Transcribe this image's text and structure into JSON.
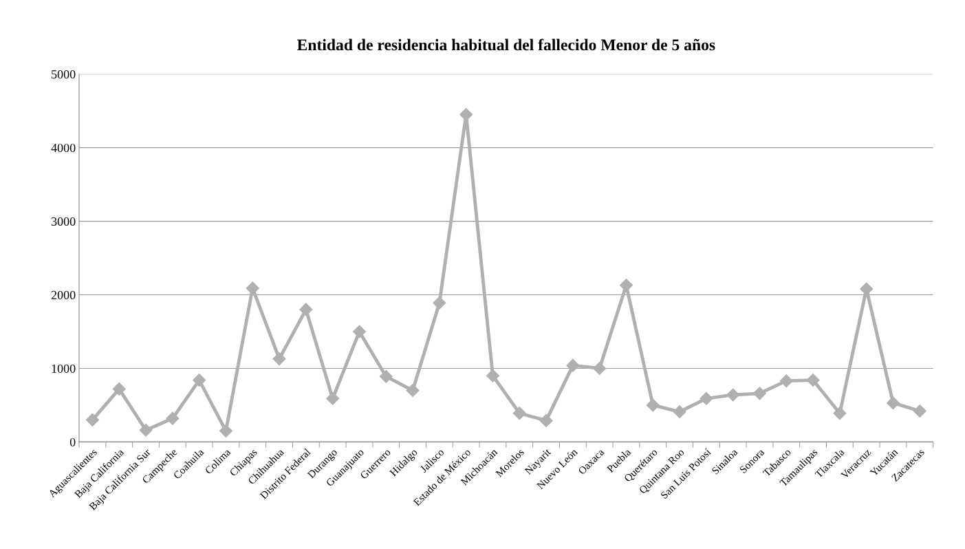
{
  "chart_data": {
    "type": "line",
    "title": "Entidad de residencia habitual del fallecido Menor de 5 años",
    "categories": [
      "Aguascalientes",
      "Baja California",
      "Baja California Sur",
      "Campeche",
      "Coahuila",
      "Colima",
      "Chiapas",
      "Chihuahua",
      "Distrito Federal",
      "Durango",
      "Guanajuato",
      "Guerrero",
      "Hidalgo",
      "Jalisco",
      "Estado de México",
      "Michoacán",
      "Morelos",
      "Nayarit",
      "Nuevo León",
      "Oaxaca",
      "Puebla",
      "Querétaro",
      "Quintana Roo",
      "San Luis Potosí",
      "Sinaloa",
      "Sonora",
      "Tabasco",
      "Tamaulipas",
      "Tlaxcala",
      "Veracruz",
      "Yucatán",
      "Zacatecas"
    ],
    "series": [
      {
        "color": "#b0b0b0",
        "values": [
          300,
          720,
          160,
          320,
          840,
          150,
          2090,
          1130,
          1800,
          590,
          1500,
          890,
          700,
          1890,
          4450,
          900,
          390,
          290,
          1040,
          1000,
          2130,
          500,
          410,
          590,
          640,
          660,
          830,
          840,
          390,
          2080,
          530,
          420
        ]
      }
    ],
    "ylim": [
      0,
      5000
    ],
    "yticks": [
      0,
      1000,
      2000,
      3000,
      4000,
      5000
    ],
    "grid": "y",
    "marker": "diamond",
    "line_style": "solid",
    "legend": false
  }
}
